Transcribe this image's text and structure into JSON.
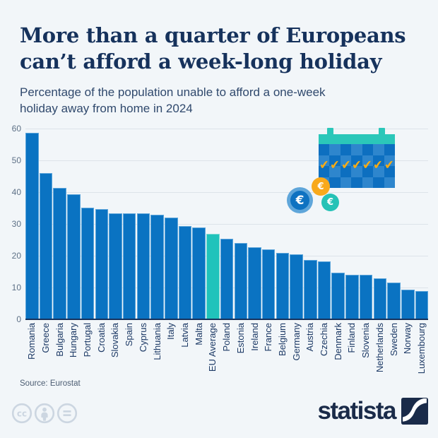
{
  "header": {
    "title_line1": "More than a quarter of Europeans",
    "title_line2": "can’t afford a week-long holiday",
    "subtitle_line1": "Percentage of the population unable to afford a one-week",
    "subtitle_line2": "holiday away from home in 2024"
  },
  "chart_data": {
    "type": "bar",
    "title": "Percentage of the population unable to afford a one-week holiday away from home in 2024",
    "categories": [
      "Romania",
      "Greece",
      "Bulgaria",
      "Hungary",
      "Portugal",
      "Croatia",
      "Slovakia",
      "Spain",
      "Cyprus",
      "Lithuania",
      "Italy",
      "Latvia",
      "Malta",
      "EU Average",
      "Poland",
      "Estonia",
      "Ireland",
      "France",
      "Belgium",
      "Germany",
      "Austria",
      "Czechia",
      "Denmark",
      "Finland",
      "Slovenia",
      "Netherlands",
      "Sweden",
      "Norway",
      "Luxembourg"
    ],
    "values": [
      58.6,
      46.0,
      41.4,
      39.4,
      35.2,
      34.7,
      33.4,
      33.4,
      33.3,
      33.0,
      32.1,
      29.4,
      28.9,
      27.0,
      25.4,
      24.0,
      22.7,
      21.9,
      20.9,
      20.5,
      18.6,
      18.2,
      14.7,
      14.1,
      14.0,
      12.9,
      11.5,
      9.3,
      8.9
    ],
    "highlight_category": "EU Average",
    "xlabel": "",
    "ylabel": "",
    "ylim": [
      0,
      60
    ],
    "yticks": [
      0,
      10,
      20,
      30,
      40,
      50,
      60
    ],
    "grid": true,
    "legend": false,
    "bar_color": "#0a73c2",
    "highlight_color": "#20c3bb"
  },
  "illustration": {
    "calendar": {
      "columns": 7,
      "rows": 4,
      "check_count": 7,
      "check_icon": "✔",
      "header_color": "#2bc7b9",
      "cell_color_dark": "#0d6fc0",
      "cell_color_light": "#2e86cd",
      "check_color": "#f9ac15"
    },
    "coins": [
      {
        "name": "euro-coin-blue",
        "symbol": "€",
        "color": "#0e72c1",
        "ring_color": "#5fa6da"
      },
      {
        "name": "euro-coin-yellow",
        "symbol": "€",
        "color": "#f8a91c"
      },
      {
        "name": "euro-coin-teal",
        "symbol": "€",
        "color": "#25c2b6"
      }
    ]
  },
  "footer": {
    "source": "Source: Eurostat",
    "license_icons": [
      "cc-icon",
      "attribution-icon",
      "no-derivatives-icon"
    ],
    "brand_wordmark": "statista"
  },
  "colors": {
    "background": "#f2f6f9",
    "title": "#16325c",
    "subtitle": "#30496d",
    "axis": "#16325c",
    "tick_label": "#5d7086",
    "gridline": "#dde3ea",
    "brand_navy": "#1a2b49",
    "license_icon": "#ccd6e1"
  }
}
